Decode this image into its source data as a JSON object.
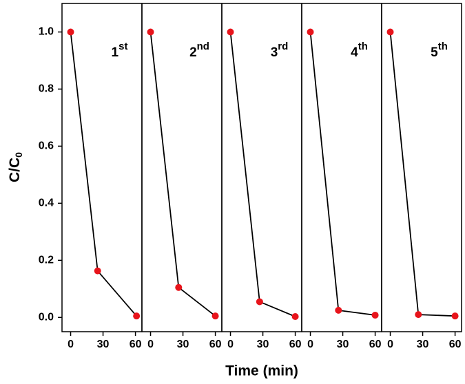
{
  "chart_data": {
    "type": "line",
    "xlabel": "Time  (min)",
    "ylabel": {
      "main": "C/C",
      "sub": "0"
    },
    "ylim": [
      -0.05,
      1.1
    ],
    "yticks": [
      {
        "value": 0,
        "label": "0.0"
      },
      0.2,
      0.4,
      0.6,
      0.8,
      {
        "value": 1,
        "label": "1.0"
      }
    ],
    "xlim": [
      -8,
      66
    ],
    "xticks": [
      0,
      30,
      60
    ],
    "line_color": "#000000",
    "marker_color": "#e8141b",
    "panels": [
      {
        "annotation": {
          "number": "1",
          "suffix": "st"
        },
        "x": [
          0,
          25,
          61
        ],
        "values": [
          1.0,
          0.163,
          0.005
        ]
      },
      {
        "annotation": {
          "number": "2",
          "suffix": "nd"
        },
        "x": [
          0,
          26,
          60
        ],
        "values": [
          1.0,
          0.105,
          0.005
        ]
      },
      {
        "annotation": {
          "number": "3",
          "suffix": "rd"
        },
        "x": [
          0,
          27,
          60
        ],
        "values": [
          1.0,
          0.055,
          0.003
        ]
      },
      {
        "annotation": {
          "number": "4",
          "suffix": "th"
        },
        "x": [
          0,
          26,
          60
        ],
        "values": [
          1.0,
          0.025,
          0.008
        ]
      },
      {
        "annotation": {
          "number": "5",
          "suffix": "th"
        },
        "x": [
          0,
          26,
          60
        ],
        "values": [
          1.0,
          0.01,
          0.005
        ]
      }
    ]
  }
}
